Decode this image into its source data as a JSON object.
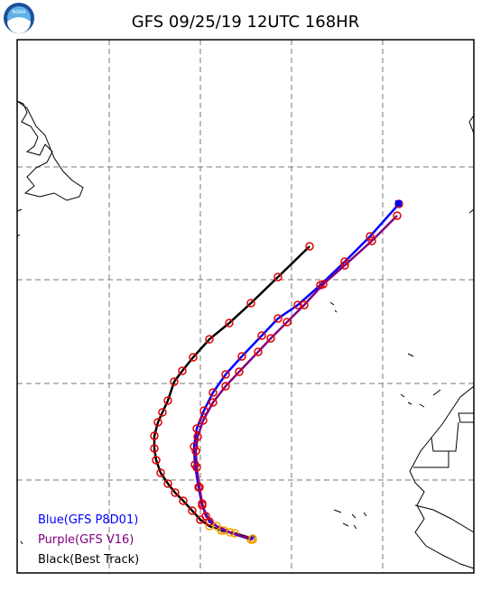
{
  "header": {
    "title": "GFS 09/25/19 12UTC 168HR"
  },
  "legend": {
    "items": [
      "Blue(GFS P8D01)",
      "Purple(GFS V16)",
      "Black(Best Track)"
    ]
  }
}
